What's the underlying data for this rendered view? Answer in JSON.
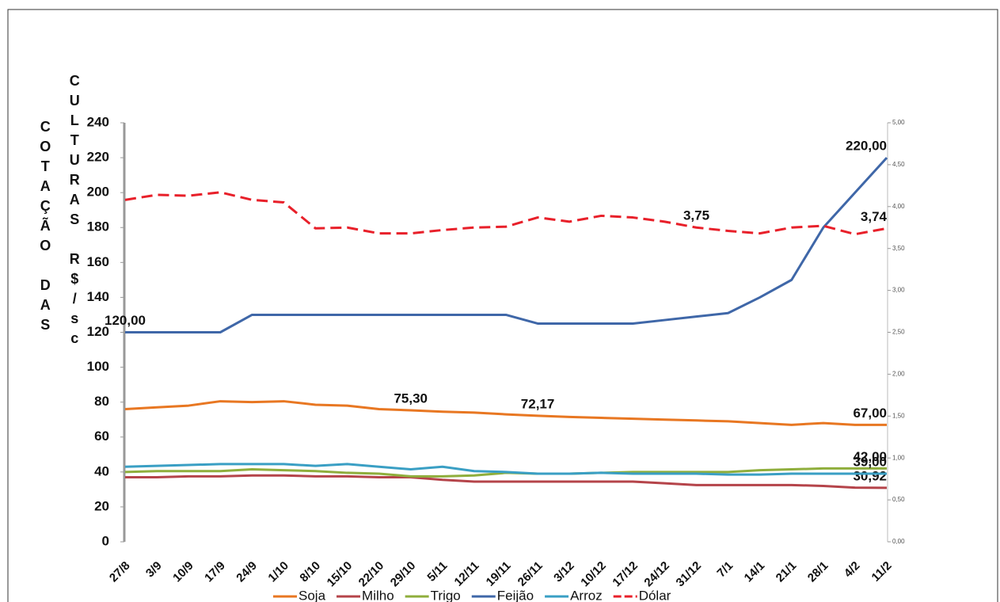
{
  "chart_data": {
    "type": "line",
    "ylabel_lines": [
      "COTAÇÃO DAS",
      "CULTURAS R$/sc"
    ],
    "categories": [
      "27/8",
      "3/9",
      "10/9",
      "17/9",
      "24/9",
      "1/10",
      "8/10",
      "15/10",
      "22/10",
      "29/10",
      "5/11",
      "12/11",
      "19/11",
      "26/11",
      "3/12",
      "10/12",
      "17/12",
      "24/12",
      "31/12",
      "7/1",
      "14/1",
      "21/1",
      "28/1",
      "4/2",
      "11/2"
    ],
    "ylim": [
      0,
      240
    ],
    "yticks": [
      0,
      20,
      40,
      60,
      80,
      100,
      120,
      140,
      160,
      180,
      200,
      220,
      240
    ],
    "y2lim": [
      0,
      5
    ],
    "y2ticks": [
      {
        "value": 0,
        "label": "0,00"
      },
      {
        "value": 0.5,
        "label": "0,50"
      },
      {
        "value": 1,
        "label": "1,00"
      },
      {
        "value": 1.5,
        "label": "1,50"
      },
      {
        "value": 2,
        "label": "2,00"
      },
      {
        "value": 2.5,
        "label": "2,50"
      },
      {
        "value": 3,
        "label": "3,00"
      },
      {
        "value": 3.5,
        "label": "3,50"
      },
      {
        "value": 4,
        "label": "4,00"
      },
      {
        "value": 4.5,
        "label": "4,50"
      },
      {
        "value": 5,
        "label": "5,00"
      }
    ],
    "series": [
      {
        "name": "Soja",
        "color": "#e87722",
        "values": [
          76,
          77,
          78,
          80.5,
          80,
          80.5,
          78.5,
          78,
          76,
          75.3,
          74.5,
          74,
          73,
          72.17,
          71.5,
          71,
          70.5,
          70,
          69.5,
          69,
          68,
          67,
          68,
          67,
          67
        ],
        "value_labels": [
          null,
          null,
          null,
          null,
          null,
          null,
          null,
          null,
          null,
          "75,30",
          null,
          null,
          null,
          "72,17",
          null,
          null,
          null,
          null,
          null,
          null,
          null,
          null,
          null,
          null,
          "67,00"
        ]
      },
      {
        "name": "Milho",
        "color": "#b5444a",
        "values": [
          37,
          37,
          37.5,
          37.5,
          38,
          38,
          37.5,
          37.5,
          37,
          37,
          35.5,
          34.5,
          34.5,
          34.5,
          34.5,
          34.5,
          34.5,
          33.5,
          32.5,
          32.5,
          32.5,
          32.5,
          32,
          31,
          30.92
        ],
        "value_labels": [
          null,
          null,
          null,
          null,
          null,
          null,
          null,
          null,
          null,
          null,
          null,
          null,
          null,
          null,
          null,
          null,
          null,
          null,
          null,
          null,
          null,
          null,
          null,
          null,
          "30,92"
        ]
      },
      {
        "name": "Trigo",
        "color": "#8fae3c",
        "values": [
          40,
          40.5,
          40.5,
          40.5,
          41.5,
          41,
          40.5,
          39.5,
          39,
          37.5,
          37.5,
          38,
          39.5,
          39,
          39,
          39.5,
          40,
          40,
          40,
          40,
          41,
          41.5,
          42,
          42,
          42
        ],
        "value_labels": [
          null,
          null,
          null,
          null,
          null,
          null,
          null,
          null,
          null,
          null,
          null,
          null,
          null,
          null,
          null,
          null,
          null,
          null,
          null,
          null,
          null,
          null,
          null,
          null,
          "42,00"
        ]
      },
      {
        "name": "Feijão",
        "color": "#3f67a8",
        "values": [
          120,
          120,
          120,
          120,
          130,
          130,
          130,
          130,
          130,
          130,
          130,
          130,
          130,
          125,
          125,
          125,
          125,
          127,
          129,
          131,
          140,
          150,
          180,
          200,
          220
        ],
        "value_labels": [
          "120,00",
          null,
          null,
          null,
          null,
          null,
          null,
          null,
          null,
          null,
          null,
          null,
          null,
          null,
          null,
          null,
          null,
          null,
          null,
          null,
          null,
          null,
          null,
          null,
          "220,00"
        ]
      },
      {
        "name": "Arroz",
        "color": "#3a9fc4",
        "values": [
          43,
          43.5,
          44,
          44.5,
          44.5,
          44.5,
          43.5,
          44.5,
          43,
          41.5,
          43,
          40.5,
          40,
          39,
          39,
          39.5,
          39,
          39,
          39,
          38.5,
          38.5,
          39,
          39,
          39,
          39
        ],
        "value_labels": [
          null,
          null,
          null,
          null,
          null,
          null,
          null,
          null,
          null,
          null,
          null,
          null,
          null,
          null,
          null,
          null,
          null,
          null,
          null,
          null,
          null,
          null,
          null,
          null,
          "39,00"
        ]
      },
      {
        "name": "Dólar",
        "color": "#e8202a",
        "axis": "y2",
        "dashed": true,
        "values": [
          4.08,
          4.14,
          4.13,
          4.17,
          4.08,
          4.05,
          3.74,
          3.75,
          3.68,
          3.68,
          3.72,
          3.75,
          3.76,
          3.87,
          3.82,
          3.89,
          3.87,
          3.82,
          3.75,
          3.71,
          3.68,
          3.75,
          3.77,
          3.67,
          3.74
        ],
        "value_labels": [
          null,
          null,
          null,
          null,
          null,
          null,
          null,
          null,
          null,
          null,
          null,
          null,
          null,
          null,
          null,
          null,
          null,
          null,
          "3,75",
          null,
          null,
          null,
          null,
          null,
          "3,74"
        ]
      }
    ]
  }
}
